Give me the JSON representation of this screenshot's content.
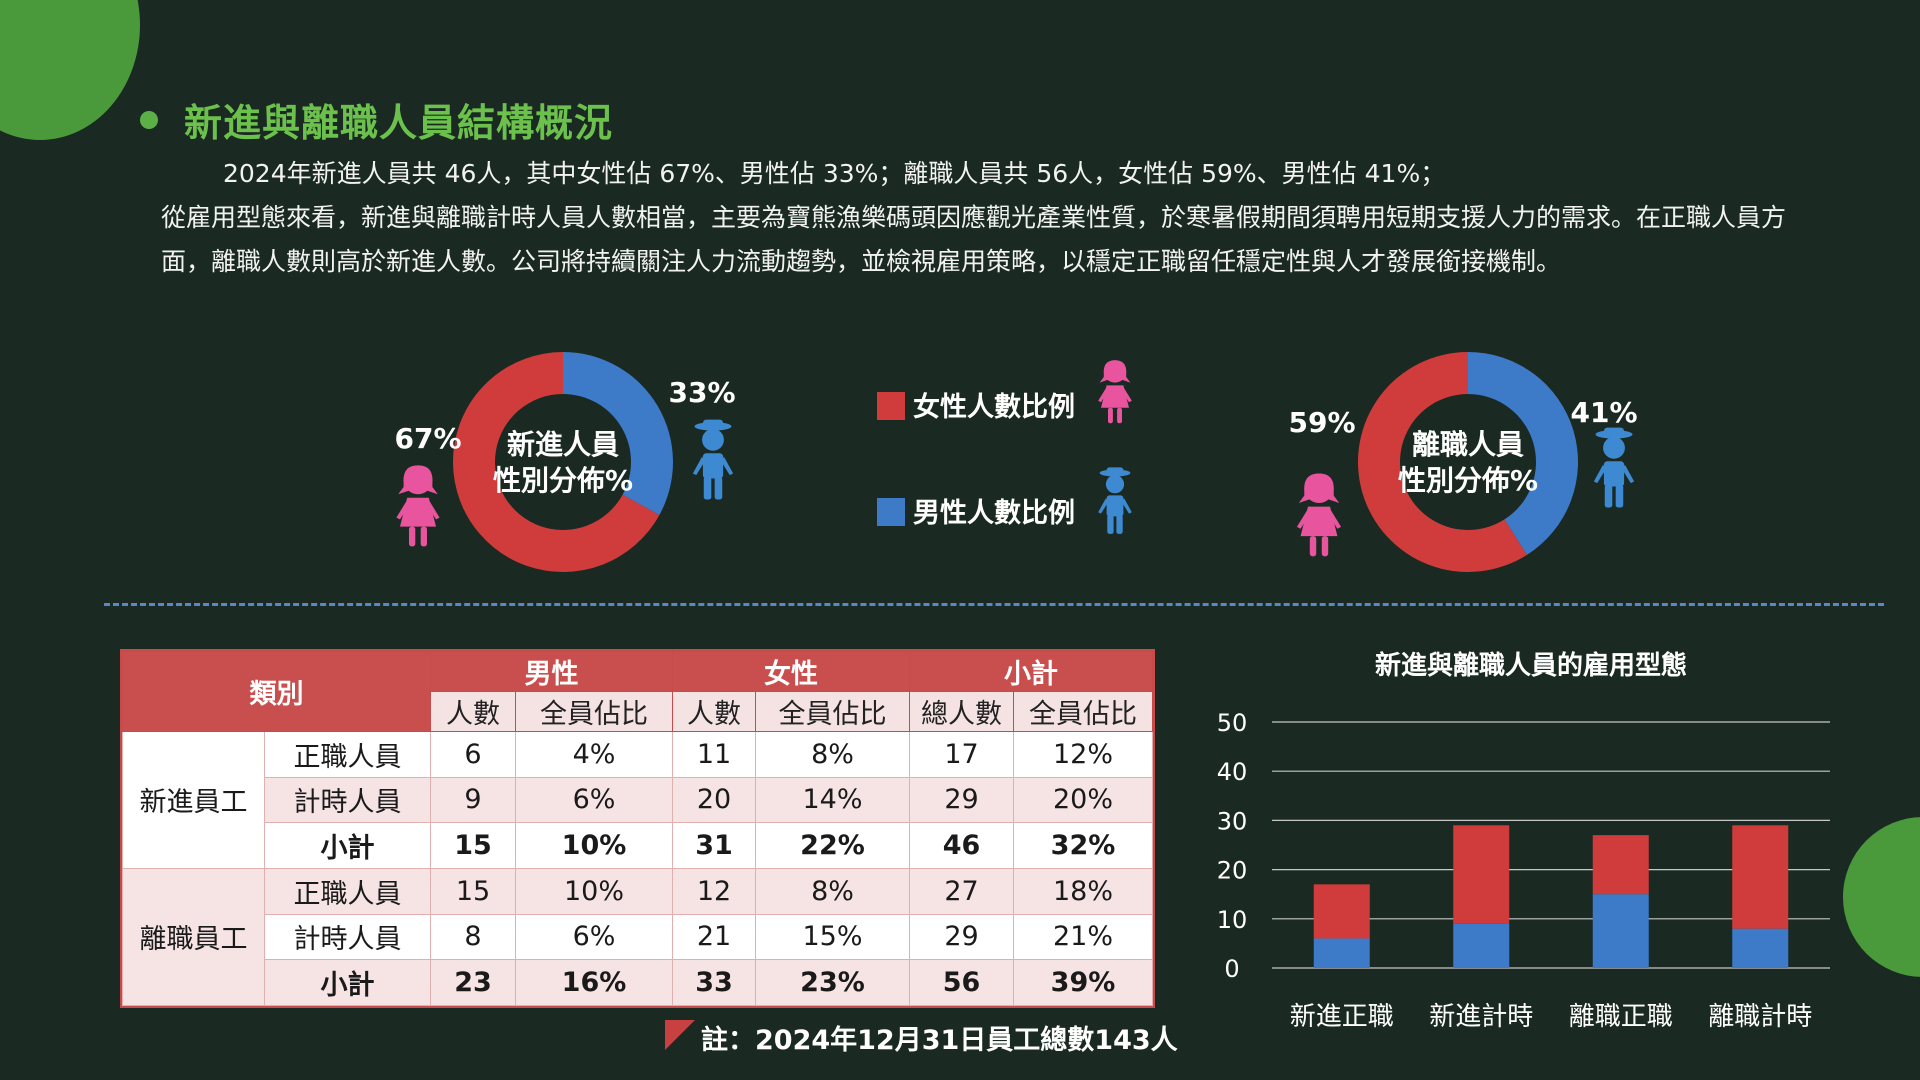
{
  "heading": {
    "title": "新進與離職人員結構概況"
  },
  "paragraph": {
    "line1": "2024年新進人員共 46人，其中女性佔 67%、男性佔 33%；離職人員共 56人，女性佔 59%、男性佔 41%；",
    "line2": "從雇用型態來看，新進與離職計時人員人數相當，主要為寶熊漁樂碼頭因應觀光產業性質，於寒暑假期間須聘用短期支援人力的需求。在正職人員方面，離職人數則高於新進人數。公司將持續關注人力流動趨勢，並檢視雇用策略，以穩定正職留任穩定性與人才發展銜接機制。"
  },
  "legend": {
    "female_label": "女性人數比例",
    "male_label": "男性人數比例"
  },
  "colors": {
    "female": "#d03c3c",
    "male": "#3d7ac8",
    "female_icon": "#e8559e",
    "male_icon": "#3d8ad2",
    "accent_green": "#5cb048"
  },
  "chart_data": [
    {
      "type": "pie",
      "variant": "donut",
      "title": "新進人員性別分佈%",
      "title_lines": [
        "新進人員",
        "性別分佈%"
      ],
      "labels": [
        "女性人數比例",
        "男性人數比例"
      ],
      "values": [
        67,
        33
      ],
      "value_labels": [
        "67%",
        "33%"
      ]
    },
    {
      "type": "pie",
      "variant": "donut",
      "title": "離職人員性別分佈%",
      "title_lines": [
        "離職人員",
        "性別分佈%"
      ],
      "labels": [
        "女性人數比例",
        "男性人數比例"
      ],
      "values": [
        59,
        41
      ],
      "value_labels": [
        "59%",
        "41%"
      ]
    },
    {
      "type": "bar",
      "stacked": true,
      "title": "新進與離職人員的雇用型態",
      "categories": [
        "新進正職",
        "新進計時",
        "離職正職",
        "離職計時"
      ],
      "series": [
        {
          "name": "男性",
          "values": [
            6,
            9,
            15,
            8
          ]
        },
        {
          "name": "女性",
          "values": [
            11,
            20,
            12,
            21
          ]
        }
      ],
      "ylim": [
        0,
        50
      ],
      "yticks": [
        0,
        10,
        20,
        30,
        40,
        50
      ],
      "grid": true,
      "legend": "none"
    }
  ],
  "table": {
    "header": {
      "category": "類別",
      "male": "男性",
      "female": "女性",
      "subtotal": "小計",
      "count": "人數",
      "ratio": "全員佔比",
      "total_count": "總人數"
    },
    "groups": [
      {
        "name": "新進員工",
        "rows": [
          {
            "type": "正職人員",
            "m": "6",
            "mp": "4%",
            "f": "11",
            "fp": "8%",
            "t": "17",
            "tp": "12%"
          },
          {
            "type": "計時人員",
            "m": "9",
            "mp": "6%",
            "f": "20",
            "fp": "14%",
            "t": "29",
            "tp": "20%"
          },
          {
            "type": "小計",
            "m": "15",
            "mp": "10%",
            "f": "31",
            "fp": "22%",
            "t": "46",
            "tp": "32%"
          }
        ]
      },
      {
        "name": "離職員工",
        "rows": [
          {
            "type": "正職人員",
            "m": "15",
            "mp": "10%",
            "f": "12",
            "fp": "8%",
            "t": "27",
            "tp": "18%"
          },
          {
            "type": "計時人員",
            "m": "8",
            "mp": "6%",
            "f": "21",
            "fp": "15%",
            "t": "29",
            "tp": "21%"
          },
          {
            "type": "小計",
            "m": "23",
            "mp": "16%",
            "f": "33",
            "fp": "23%",
            "t": "56",
            "tp": "39%"
          }
        ]
      }
    ]
  },
  "note": "註：2024年12月31日員工總數143人"
}
